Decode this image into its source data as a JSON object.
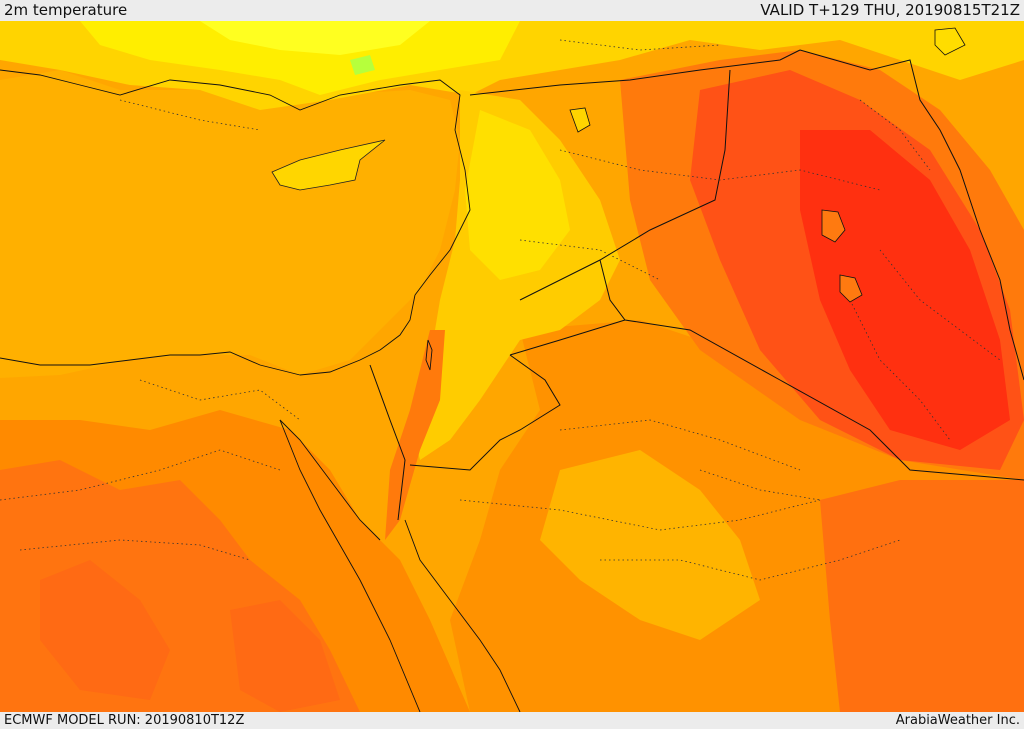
{
  "header": {
    "title": "2m temperature",
    "valid": "VALID T+129 THU, 20190815T21Z"
  },
  "footer": {
    "run": "ECMWF MODEL RUN: 20190810T12Z",
    "credit": "ArabiaWeather Inc."
  },
  "palette": {
    "light_yellow": "#ffff00",
    "yellow": "#ffdd00",
    "amber": "#ffbb00",
    "orange_light": "#ffa600",
    "orange": "#ff8800",
    "orange_dark": "#ff6a10",
    "red_orange": "#ff4a14",
    "red": "#ff2a10",
    "green_spot": "#b6ff3c"
  }
}
